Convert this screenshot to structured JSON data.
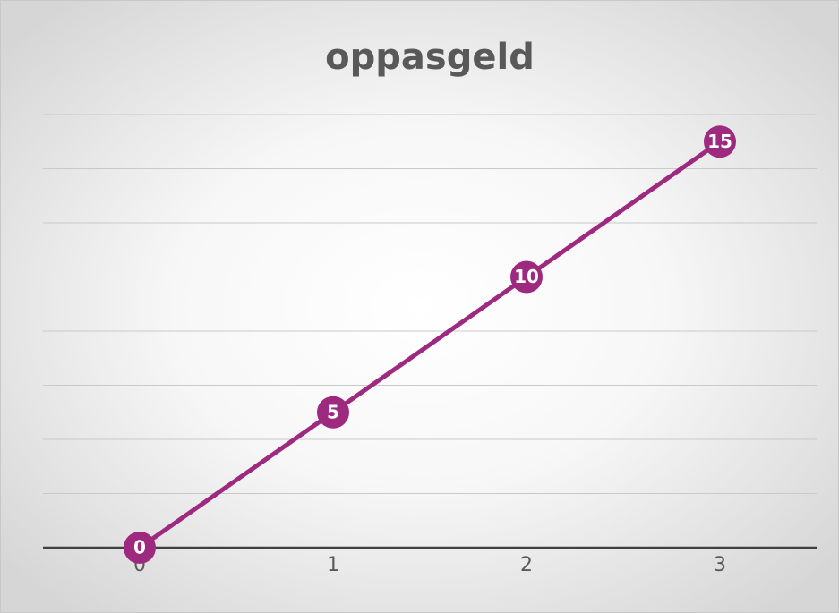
{
  "chart_data": {
    "type": "line",
    "title": "oppasgeld",
    "categories": [
      "0",
      "1",
      "2",
      "3"
    ],
    "series": [
      {
        "name": "oppasgeld",
        "color": "#9e2a80",
        "values": [
          0,
          5,
          10,
          15
        ]
      }
    ],
    "ylim": [
      0,
      16
    ],
    "yticks": [
      0,
      2,
      4,
      6,
      8,
      10,
      12,
      14,
      16
    ],
    "grid": true,
    "data_labels": true
  }
}
